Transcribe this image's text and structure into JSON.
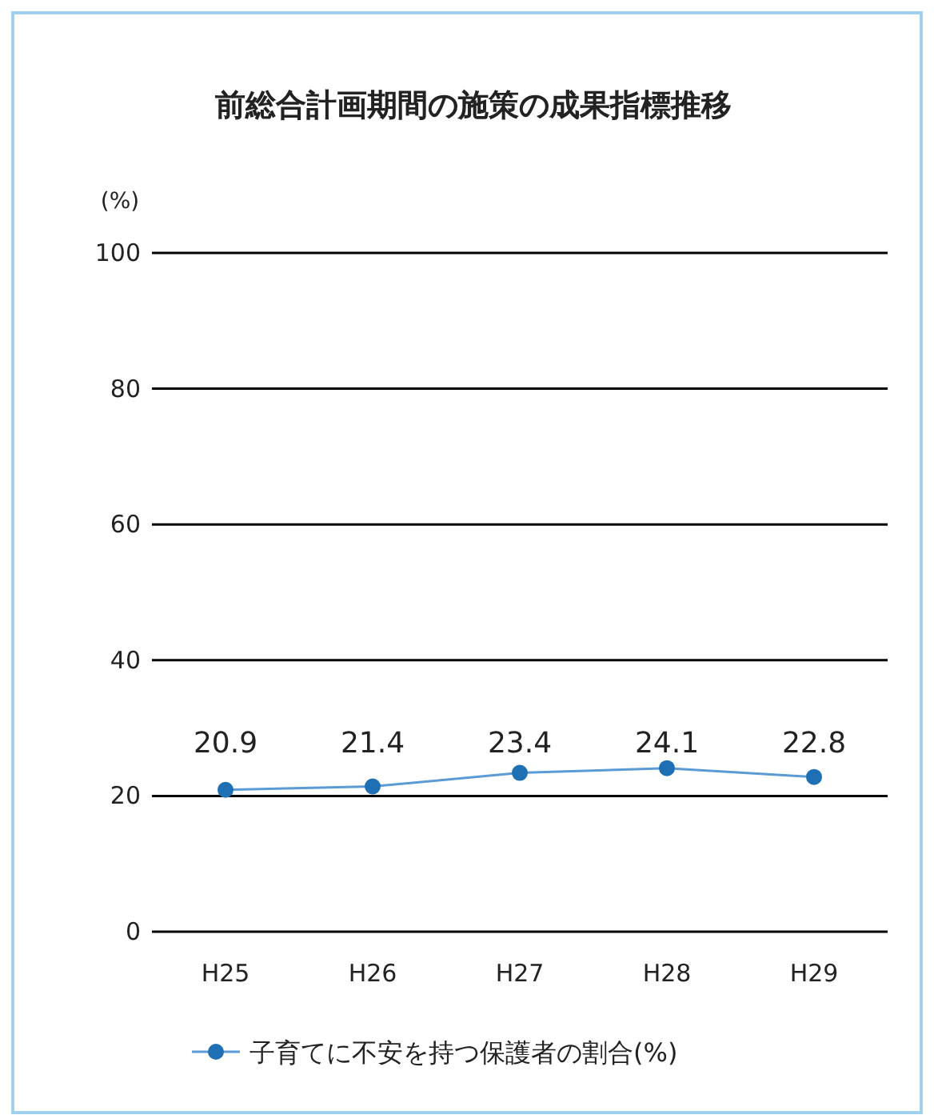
{
  "chart_data": {
    "type": "line",
    "title": "前総合計画期間の施策の成果指標推移",
    "ylabel": "(%)",
    "categories": [
      "H25",
      "H26",
      "H27",
      "H28",
      "H29"
    ],
    "series": [
      {
        "name": "子育てに不安を持つ保護者の割合(%)",
        "color": "#1f6fb4",
        "values": [
          20.9,
          21.4,
          23.4,
          24.1,
          22.8
        ]
      }
    ],
    "ylim": [
      0,
      100
    ],
    "yticks": [
      0,
      20,
      40,
      60,
      80,
      100
    ],
    "grid": "y",
    "legend": "bottom",
    "data_labels": true,
    "marker": "circle",
    "line_style": "solid"
  }
}
